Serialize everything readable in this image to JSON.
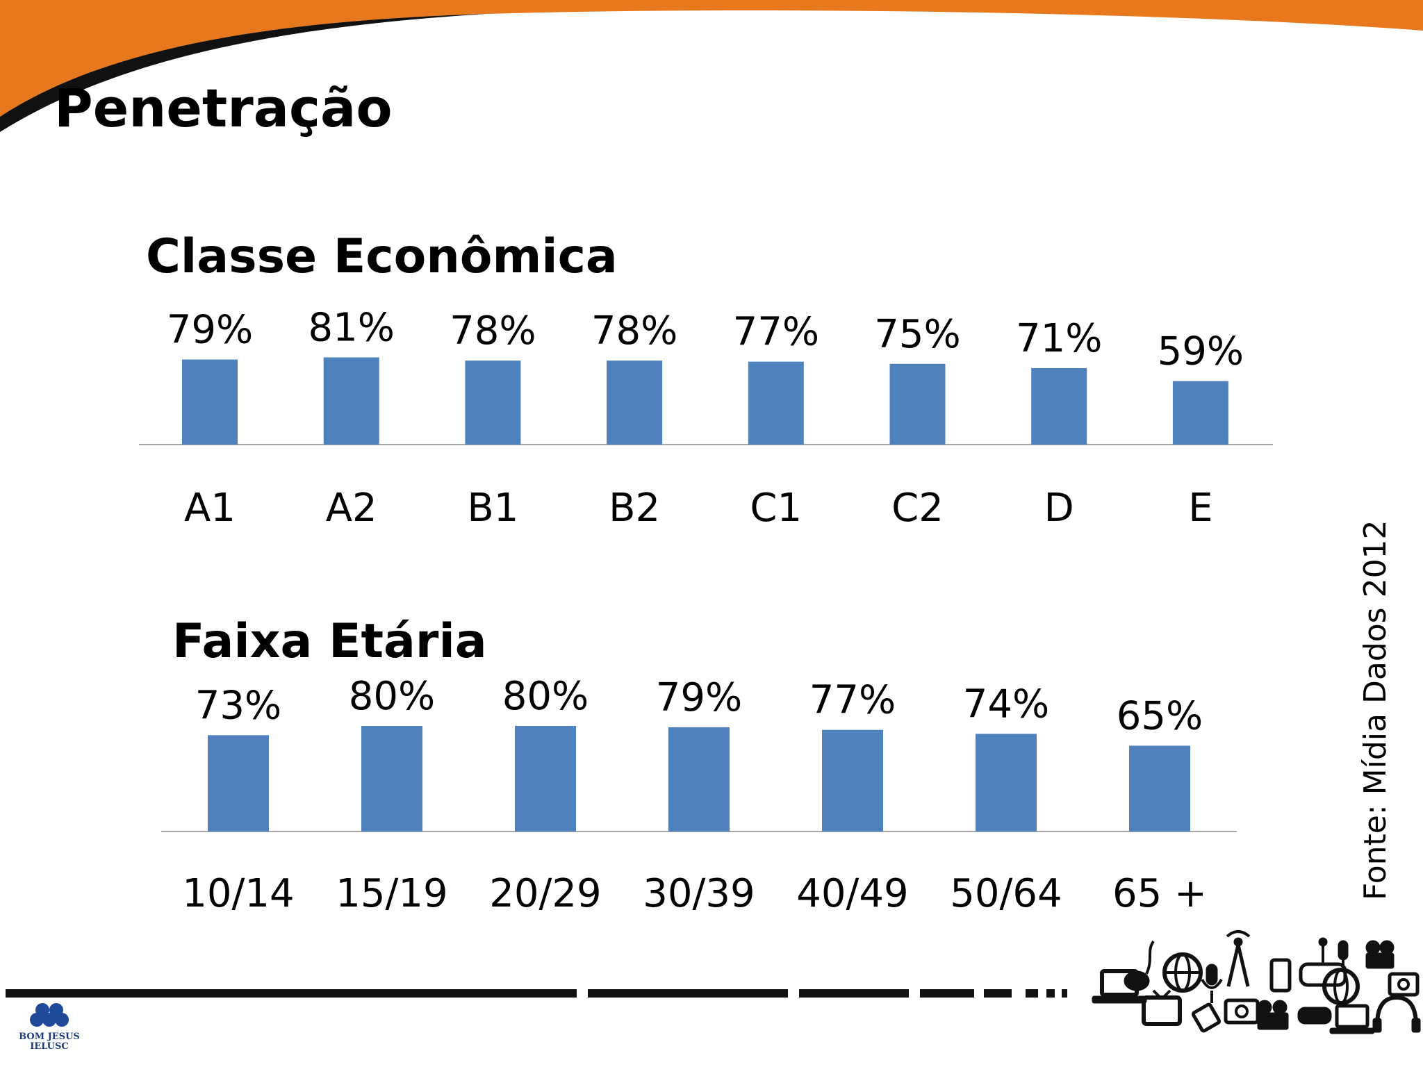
{
  "slide": {
    "title": "Penetração",
    "source_note": "Fonte: Mídia Dados 2012",
    "logo": {
      "line1": "BOM JESUS",
      "line2": "IELUSC"
    },
    "colors": {
      "accent_orange": "#E8781E",
      "bar_blue": "#4F81BD",
      "axis_gray": "#A6A6A6"
    },
    "icons": [
      "laptop-icon",
      "mouse-icon",
      "globe-icon",
      "tv-icon",
      "camera-icon",
      "microphone-icon",
      "radio-tower-icon",
      "phone-icon",
      "game-controller-icon",
      "film-camera-icon",
      "headphones-icon"
    ]
  },
  "chart_data": [
    {
      "type": "bar",
      "title": "Classe Econômica",
      "categories": [
        "A1",
        "A2",
        "B1",
        "B2",
        "C1",
        "C2",
        "D",
        "E"
      ],
      "values": [
        79,
        81,
        78,
        78,
        77,
        75,
        71,
        59
      ],
      "labels": [
        "79%",
        "81%",
        "78%",
        "78%",
        "77%",
        "75%",
        "71%",
        "59%"
      ],
      "ylim": [
        0,
        100
      ],
      "grid": false,
      "legend": "none"
    },
    {
      "type": "bar",
      "title": "Faixa Etária",
      "categories": [
        "10/14",
        "15/19",
        "20/29",
        "30/39",
        "40/49",
        "50/64",
        "65 +"
      ],
      "values": [
        73,
        80,
        80,
        79,
        77,
        74,
        65
      ],
      "labels": [
        "73%",
        "80%",
        "80%",
        "79%",
        "77%",
        "74%",
        "65%"
      ],
      "ylim": [
        0,
        100
      ],
      "grid": false,
      "legend": "none"
    }
  ]
}
